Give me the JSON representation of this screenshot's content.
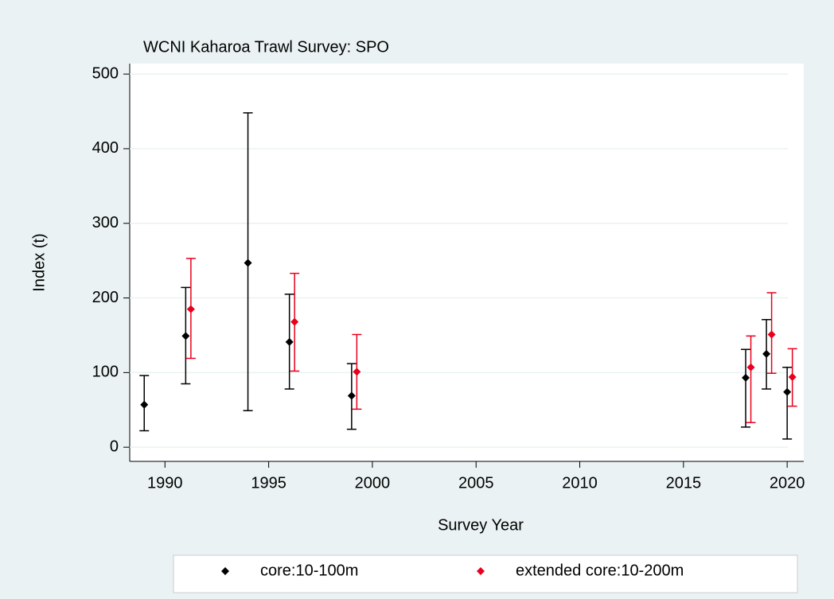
{
  "chart_data": {
    "type": "errorbar",
    "title": "WCNI Kaharoa Trawl Survey: SPO",
    "x_label": "Survey Year",
    "y_label": "Index (t)",
    "xlim": [
      1988.3,
      2020.8
    ],
    "xticks": [
      1990,
      1995,
      2000,
      2005,
      2010,
      2015,
      2020
    ],
    "ylim": [
      -19,
      514
    ],
    "yticks": [
      0,
      100,
      200,
      300,
      400,
      500
    ],
    "grid": true,
    "legend": "bottom",
    "series": [
      {
        "name": "core:10-100m",
        "color": "#000000",
        "x": [
          1989,
          1991,
          1994,
          1996,
          1999,
          2018,
          2019,
          2020
        ],
        "values": [
          57,
          149,
          247,
          141,
          69,
          93,
          125,
          74
        ],
        "lower": [
          22,
          85,
          49,
          78,
          24,
          27,
          78,
          11
        ],
        "upper": [
          96,
          214,
          448,
          205,
          112,
          131,
          171,
          107
        ]
      },
      {
        "name": "extended core:10-200m",
        "color": "#e8001c",
        "x": [
          1991.25,
          1996.25,
          1999.25,
          2018.25,
          2019.25,
          2020.25
        ],
        "values": [
          185,
          168,
          101,
          107,
          151,
          94
        ],
        "lower": [
          119,
          102,
          51,
          33,
          99,
          55
        ],
        "upper": [
          253,
          233,
          151,
          149,
          207,
          132
        ]
      }
    ]
  }
}
